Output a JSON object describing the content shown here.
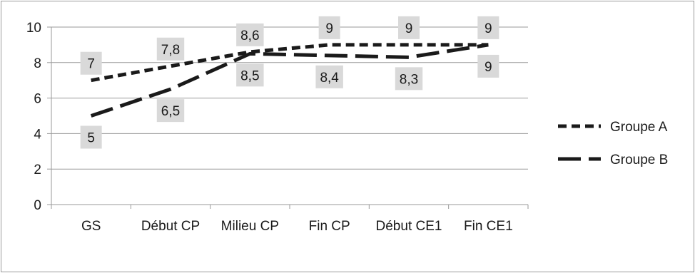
{
  "chart_data": {
    "type": "line",
    "title": "",
    "xlabel": "",
    "ylabel": "",
    "categories": [
      "GS",
      "Début CP",
      "Milieu CP",
      "Fin CP",
      "Début CE1",
      "Fin CE1"
    ],
    "ylim": [
      0,
      10
    ],
    "yticks": [
      "0",
      "2",
      "4",
      "6",
      "8",
      "10"
    ],
    "grid": true,
    "legend_position": "right",
    "series": [
      {
        "name": "Groupe A",
        "style": "short-dash",
        "color": "#1a1a1a",
        "values": [
          7,
          7.8,
          8.6,
          9,
          9,
          9
        ],
        "labels": [
          "7",
          "7,8",
          "8,6",
          "9",
          "9",
          "9"
        ]
      },
      {
        "name": "Groupe B",
        "style": "long-dash",
        "color": "#1a1a1a",
        "values": [
          5,
          6.5,
          8.5,
          8.4,
          8.3,
          9
        ],
        "labels": [
          "5",
          "6,5",
          "8,5",
          "8,4",
          "8,3",
          "9"
        ]
      }
    ]
  }
}
